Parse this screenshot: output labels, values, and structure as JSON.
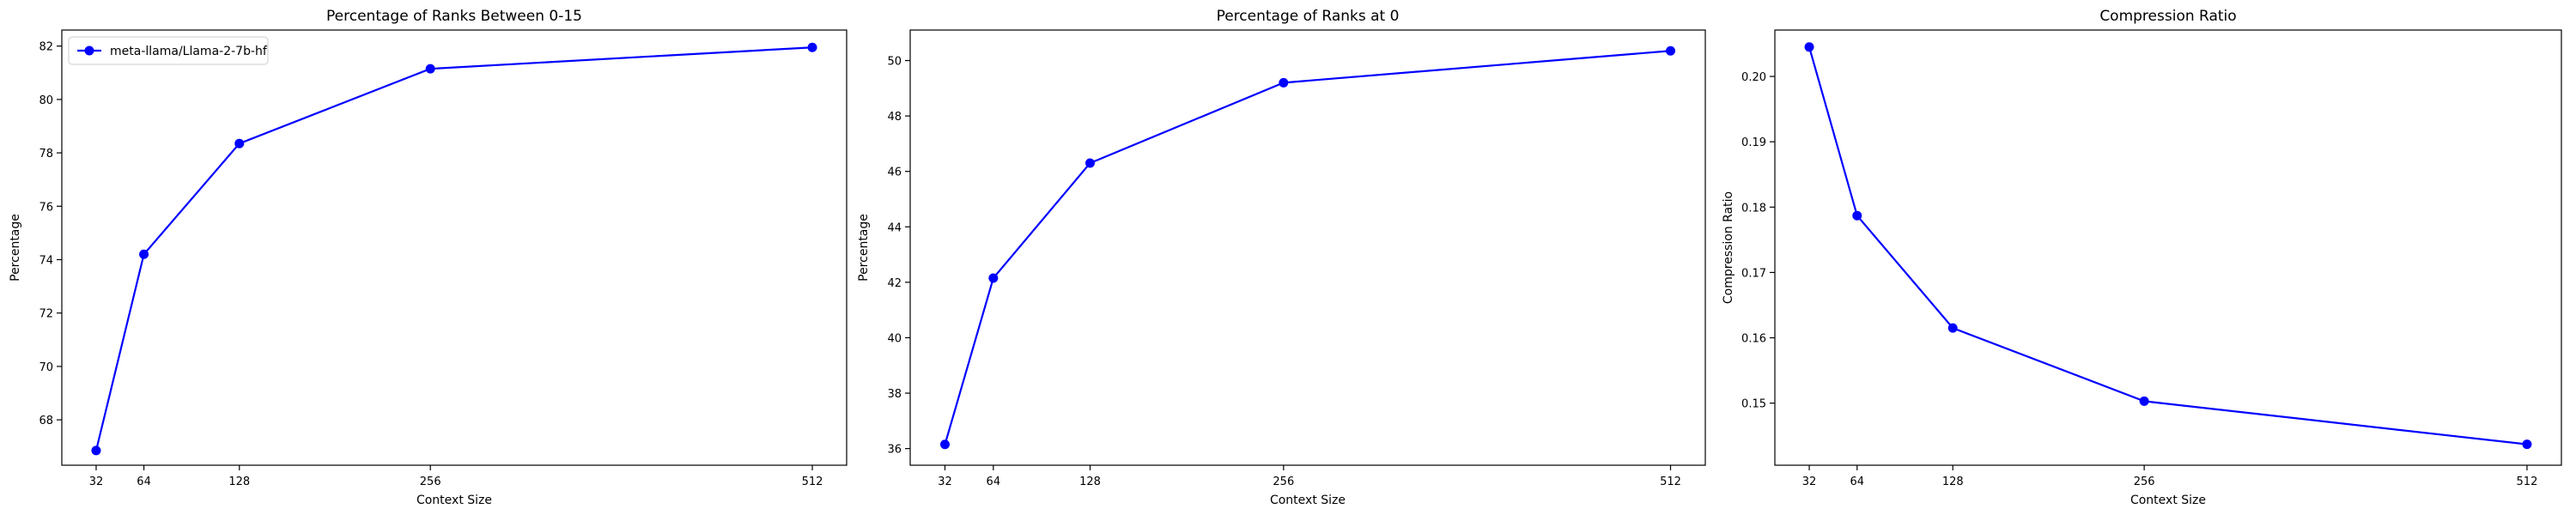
{
  "chart_data": [
    {
      "type": "line",
      "title": "Percentage of Ranks Between 0-15",
      "xlabel": "Context Size",
      "ylabel": "Percentage",
      "x": [
        32,
        64,
        128,
        256,
        512
      ],
      "x_ticks": [
        "32",
        "64",
        "128",
        "256",
        "512"
      ],
      "xlim": [
        9,
        535
      ],
      "ylim": [
        66.3,
        82.6
      ],
      "y_ticks": [
        68,
        70,
        72,
        74,
        76,
        78,
        80,
        82
      ],
      "series": [
        {
          "name": "meta-llama/Llama-2-7b-hf",
          "color": "#0000ff",
          "marker": "circle",
          "values": [
            66.85,
            74.2,
            78.35,
            81.15,
            81.95
          ]
        }
      ],
      "legend": {
        "position": "top-left"
      },
      "grid": false
    },
    {
      "type": "line",
      "title": "Percentage of Ranks at 0",
      "xlabel": "Context Size",
      "ylabel": "Percentage",
      "x": [
        32,
        64,
        128,
        256,
        512
      ],
      "x_ticks": [
        "32",
        "64",
        "128",
        "256",
        "512"
      ],
      "xlim": [
        9,
        535
      ],
      "ylim": [
        35.4,
        51.1
      ],
      "y_ticks": [
        36,
        38,
        40,
        42,
        44,
        46,
        48,
        50
      ],
      "series": [
        {
          "color": "#0000ff",
          "marker": "circle",
          "values": [
            36.15,
            42.15,
            46.3,
            49.2,
            50.35
          ]
        }
      ],
      "grid": false
    },
    {
      "type": "line",
      "title": "Compression Ratio",
      "xlabel": "Context Size",
      "ylabel": "Compression Ratio",
      "x": [
        32,
        64,
        128,
        256,
        512
      ],
      "x_ticks": [
        "32",
        "64",
        "128",
        "256",
        "512"
      ],
      "xlim": [
        9,
        535
      ],
      "ylim": [
        0.1405,
        0.2071
      ],
      "y_ticks": [
        0.15,
        0.16,
        0.17,
        0.18,
        0.19,
        0.2
      ],
      "y_tick_labels": [
        "0.15",
        "0.16",
        "0.17",
        "0.18",
        "0.19",
        "0.20"
      ],
      "series": [
        {
          "color": "#0000ff",
          "marker": "circle",
          "values": [
            0.2045,
            0.1787,
            0.1615,
            0.1503,
            0.1437
          ]
        }
      ],
      "grid": false
    }
  ]
}
